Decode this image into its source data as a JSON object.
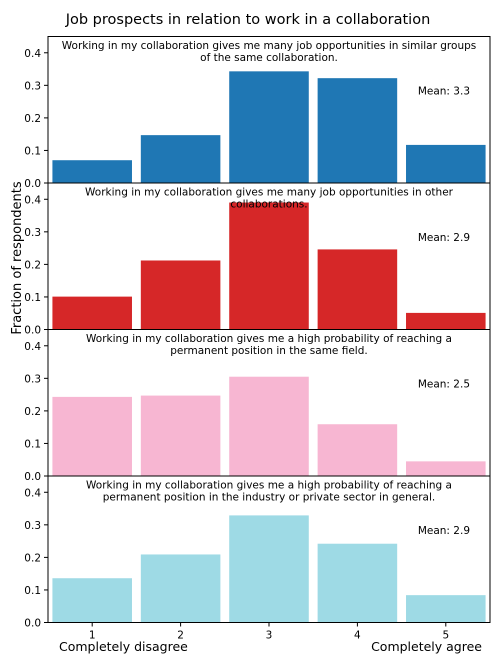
{
  "title": "Job prospects in relation to work in a collaboration",
  "ylabel": "Fraction of respondents",
  "xlabel_left": "Completely disagree",
  "xlabel_right": "Completely agree",
  "chart_data": [
    {
      "type": "bar",
      "subtitle_lines": [
        "Working in my collaboration gives me many job opportunities in similar groups",
        "of the same collaboration."
      ],
      "categories": [
        "1",
        "2",
        "3",
        "4",
        "5"
      ],
      "values": [
        0.07,
        0.147,
        0.343,
        0.322,
        0.117
      ],
      "mean_label": "Mean: 3.3",
      "color": "#1f77b4",
      "ylim": [
        0,
        0.45
      ],
      "yticks": [
        "0.0",
        "0.1",
        "0.2",
        "0.3",
        "0.4"
      ]
    },
    {
      "type": "bar",
      "subtitle_lines": [
        "Working in my collaboration gives me many job opportunities in other",
        "collaborations."
      ],
      "categories": [
        "1",
        "2",
        "3",
        "4",
        "5"
      ],
      "values": [
        0.101,
        0.212,
        0.39,
        0.246,
        0.051
      ],
      "mean_label": "Mean: 2.9",
      "color": "#d62728",
      "ylim": [
        0,
        0.45
      ],
      "yticks": [
        "0.0",
        "0.1",
        "0.2",
        "0.3",
        "0.4"
      ]
    },
    {
      "type": "bar",
      "subtitle_lines": [
        "Working in my collaboration gives me a high probability of reaching a",
        "permanent position in the same field."
      ],
      "categories": [
        "1",
        "2",
        "3",
        "4",
        "5"
      ],
      "values": [
        0.243,
        0.247,
        0.305,
        0.159,
        0.045
      ],
      "mean_label": "Mean: 2.5",
      "color": "#f7b6d2",
      "ylim": [
        0,
        0.45
      ],
      "yticks": [
        "0.0",
        "0.1",
        "0.2",
        "0.3",
        "0.4"
      ]
    },
    {
      "type": "bar",
      "subtitle_lines": [
        "Working in my collaboration gives me a high probability of reaching a",
        "permanent position in the industry or private sector in general."
      ],
      "categories": [
        "1",
        "2",
        "3",
        "4",
        "5"
      ],
      "values": [
        0.136,
        0.209,
        0.329,
        0.242,
        0.084
      ],
      "mean_label": "Mean: 2.9",
      "color": "#9edae5",
      "ylim": [
        0,
        0.45
      ],
      "yticks": [
        "0.0",
        "0.1",
        "0.2",
        "0.3",
        "0.4"
      ]
    }
  ]
}
